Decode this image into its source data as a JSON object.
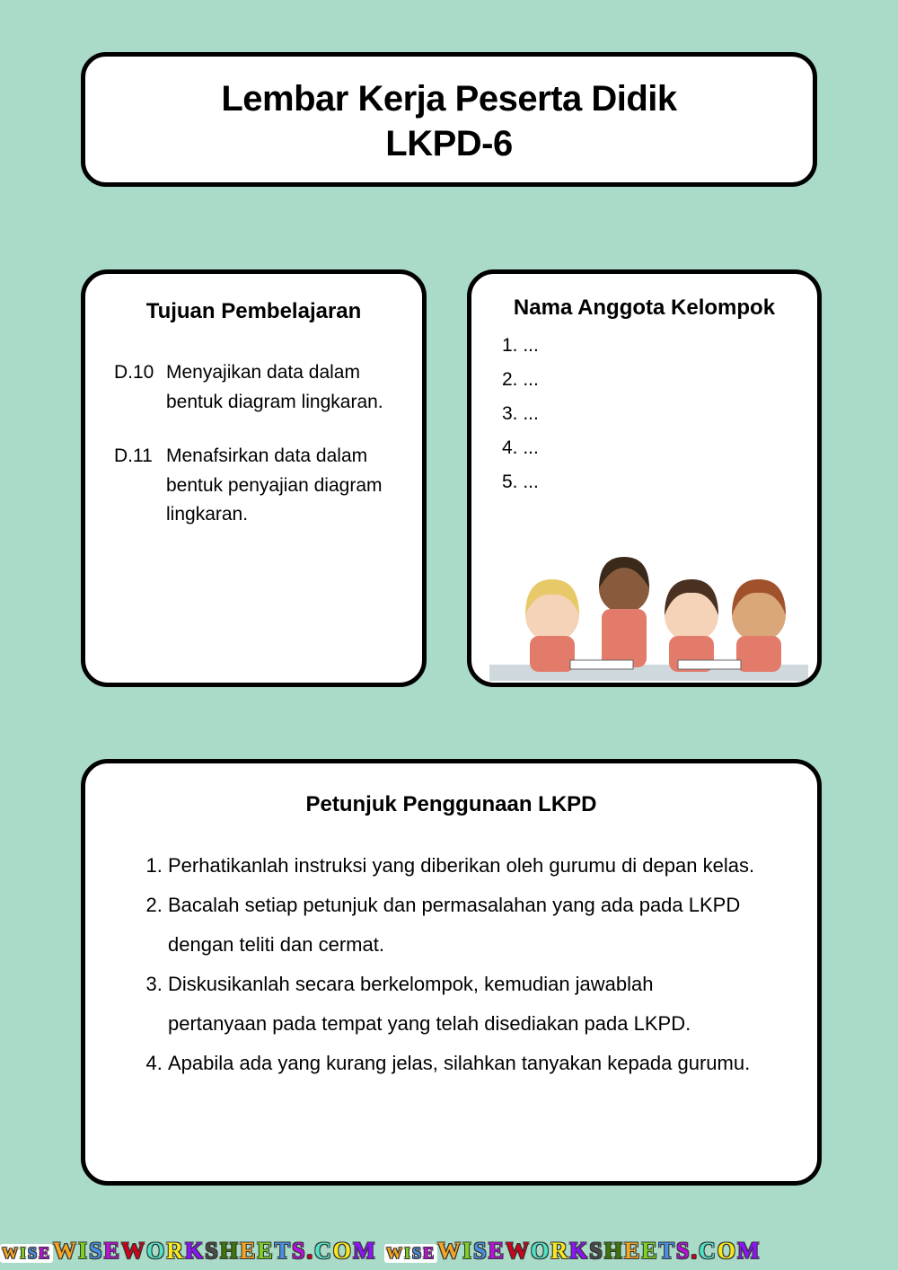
{
  "colors": {
    "background": "#a9dbc8",
    "card_bg": "#ffffff",
    "border": "#000000",
    "text": "#000000"
  },
  "header": {
    "line1": "Lembar Kerja Peserta Didik",
    "line2": "LKPD-6"
  },
  "objectives": {
    "title": "Tujuan Pembelajaran",
    "items": [
      {
        "code": "D.10",
        "text": "Menyajikan data dalam bentuk diagram lingkaran."
      },
      {
        "code": "D.11",
        "text": "Menafsirkan data dalam bentuk penyajian diagram lingkaran."
      }
    ]
  },
  "members": {
    "title": "Nama Anggota Kelompok",
    "rows": [
      "1.  ...",
      "2.  ...",
      "3.  ...",
      "4.  ...",
      "5.  ..."
    ]
  },
  "illustration": {
    "description": "four-students-studying-illustration",
    "shirt_color": "#e37b6a",
    "skin_colors": [
      "#f4d3b8",
      "#8a5a3c",
      "#f4d3b8",
      "#d9a77a"
    ],
    "hair_colors": [
      "#e8c96a",
      "#3a2a1a",
      "#4a3020",
      "#a0522d"
    ],
    "desk_color": "#cfd8dc"
  },
  "instructions": {
    "title": "Petunjuk Penggunaan LKPD",
    "items": [
      "Perhatikanlah instruksi yang diberikan oleh gurumu di depan kelas.",
      "Bacalah setiap petunjuk dan permasalahan yang ada pada LKPD dengan teliti dan cermat.",
      "Diskusikanlah secara berkelompok, kemudian jawablah pertanyaan pada tempat yang telah disediakan pada LKPD.",
      "Apabila ada yang kurang jelas, silahkan tanyakan kepada gurumu."
    ]
  },
  "watermark": {
    "text": "WISEWORKSHEETS.COM",
    "badge": "WISE",
    "colors": [
      "#f5a623",
      "#7ed321",
      "#4a90e2",
      "#bd10e0",
      "#d0021b",
      "#50e3c2",
      "#f8e71c",
      "#9013fe",
      "#4a4a4a",
      "#417505"
    ]
  }
}
